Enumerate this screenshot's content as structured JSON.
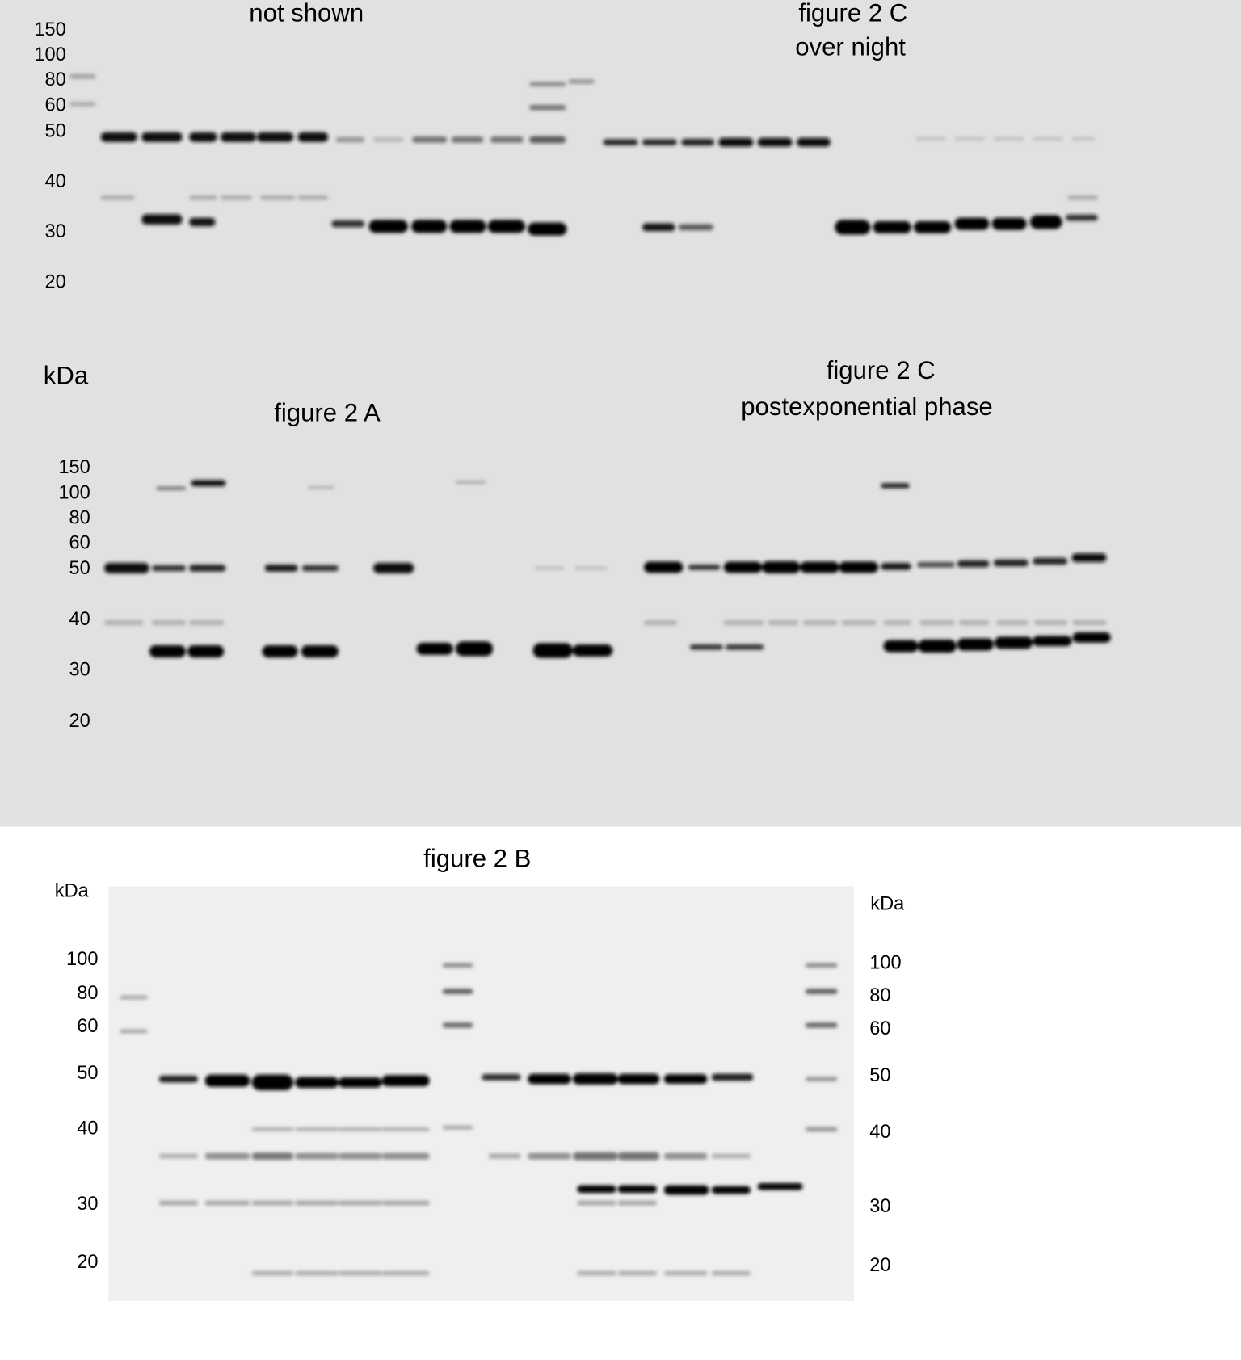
{
  "top_blot": {
    "left_label": "not shown",
    "right_label": [
      "figure 2 C",
      "over night"
    ],
    "markers": [
      "150",
      "100",
      "80",
      "60",
      "50",
      "40",
      "30",
      "20"
    ]
  },
  "kda_label": "kDa",
  "middle_blot": {
    "left_label": "figure 2 A",
    "right_label": [
      "figure 2 C",
      "postexponential phase"
    ],
    "markers": [
      "150",
      "100",
      "80",
      "60",
      "50",
      "40",
      "30",
      "20"
    ]
  },
  "bottom_blot": {
    "title": "figure 2 B",
    "left_unit": "kDa",
    "left_markers": [
      "100",
      "80",
      "60",
      "50",
      "40",
      "30",
      "20"
    ],
    "right_unit": "kDa",
    "right_markers": [
      "100",
      "80",
      "60",
      "50",
      "40",
      "30",
      "20"
    ]
  }
}
